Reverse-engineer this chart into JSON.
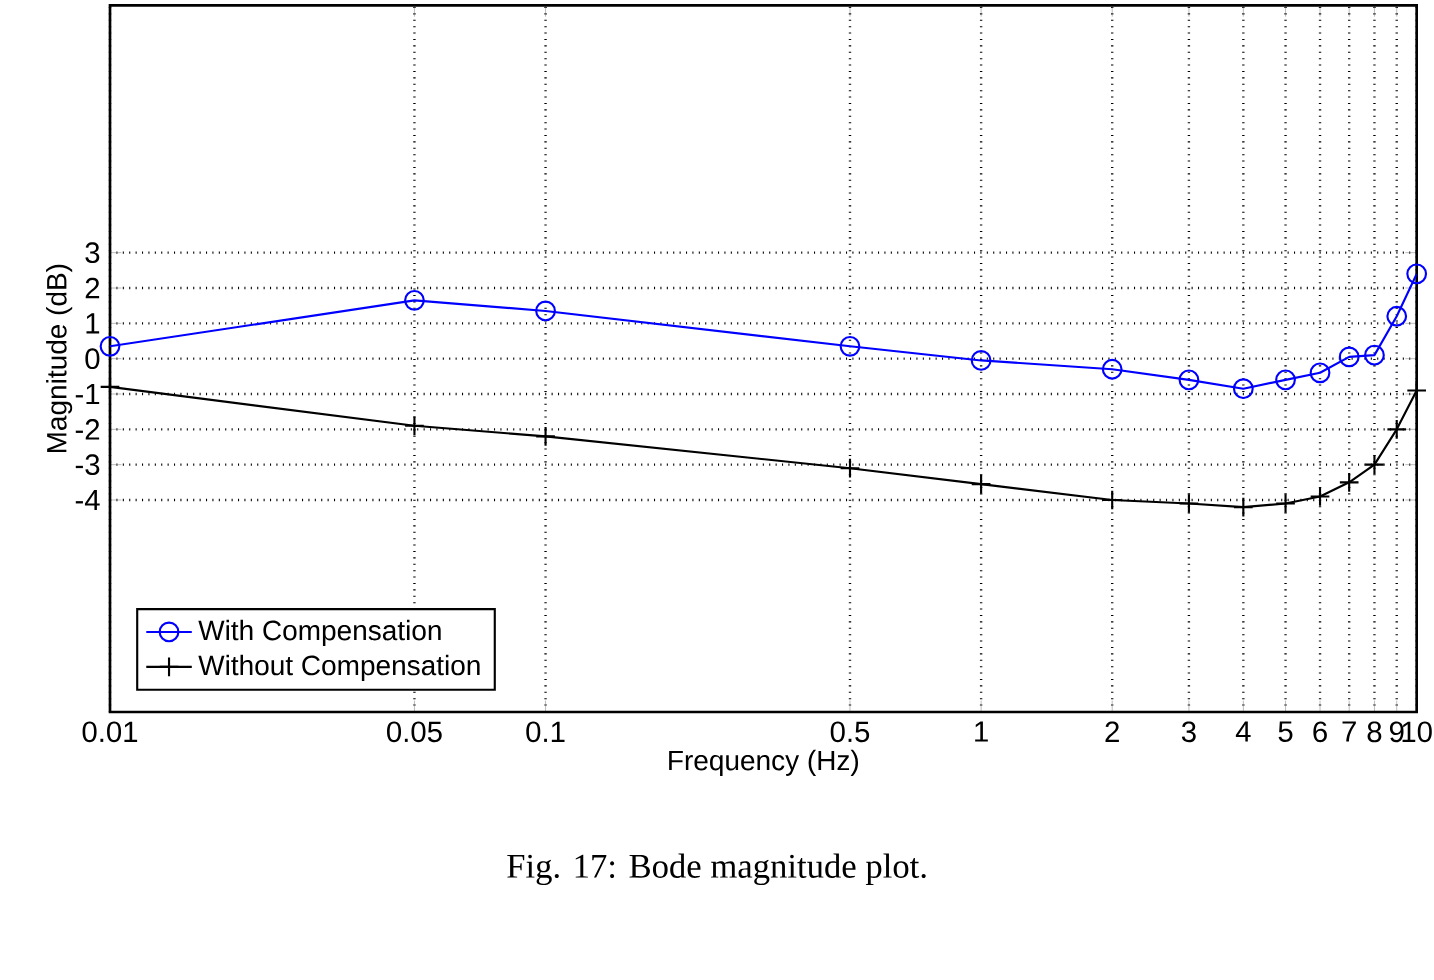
{
  "chart_data": {
    "type": "line",
    "xlabel": "Frequency (Hz)",
    "ylabel": "Magnitude (dB)",
    "log": "x",
    "x": [
      0.01,
      0.05,
      0.1,
      0.5,
      1,
      2,
      3,
      4,
      5,
      6,
      7,
      8,
      9,
      10
    ],
    "series": [
      {
        "name": "With Compensation",
        "color": "#0000ff",
        "marker": "circle",
        "values": [
          0.35,
          1.65,
          1.35,
          0.35,
          -0.05,
          -0.3,
          -0.6,
          -0.85,
          -0.6,
          -0.4,
          0.05,
          0.1,
          1.2,
          2.4
        ]
      },
      {
        "name": "Without Compensation",
        "color": "#000000",
        "marker": "cross",
        "values": [
          -0.8,
          -1.9,
          -2.2,
          -3.1,
          -3.55,
          -4.0,
          -4.1,
          -4.2,
          -4.1,
          -3.9,
          -3.5,
          -3.0,
          -2.0,
          -0.9
        ]
      }
    ],
    "xlim": [
      0.01,
      10
    ],
    "ylim": [
      -10,
      10
    ],
    "xticks": [
      0.01,
      0.05,
      0.1,
      0.5,
      1,
      2,
      3,
      4,
      5,
      6,
      7,
      8,
      9,
      10
    ],
    "yticks": [
      -4,
      -3,
      -2,
      -1,
      0,
      1,
      2,
      3
    ],
    "grid": true,
    "legend": "bottom left",
    "line_style": "solid",
    "annotations": [
      "Fig. 17: Bode magnitude plot."
    ]
  }
}
